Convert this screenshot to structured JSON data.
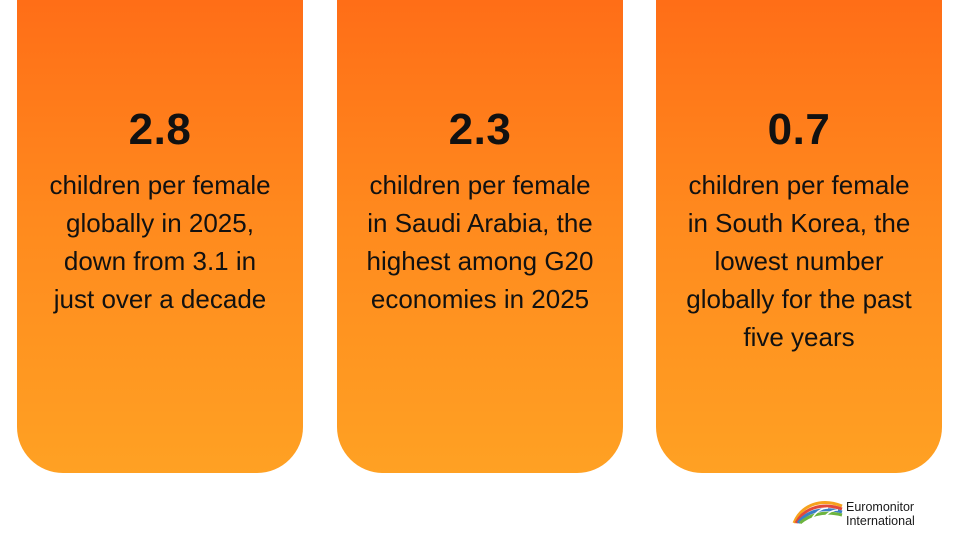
{
  "cards": [
    {
      "value": "2.8",
      "lines": [
        "children per female",
        "globally in 2025,",
        "down from 3.1 in",
        "just over a decade"
      ]
    },
    {
      "value": "2.3",
      "lines": [
        "children per female",
        "in Saudi Arabia, the",
        "highest among G20",
        "economies in 2025"
      ]
    },
    {
      "value": "0.7",
      "lines": [
        "children per female",
        "in South Korea, the",
        "lowest number",
        "globally for the past",
        "five years"
      ]
    }
  ],
  "logo": {
    "line1": "Euromonitor",
    "line2": "International",
    "icon": "rainbow-arc-logo-icon"
  },
  "colors": {
    "card_top": "#ff6a16",
    "card_bottom": "#ffa123",
    "text": "#111111",
    "background": "#ffffff"
  }
}
